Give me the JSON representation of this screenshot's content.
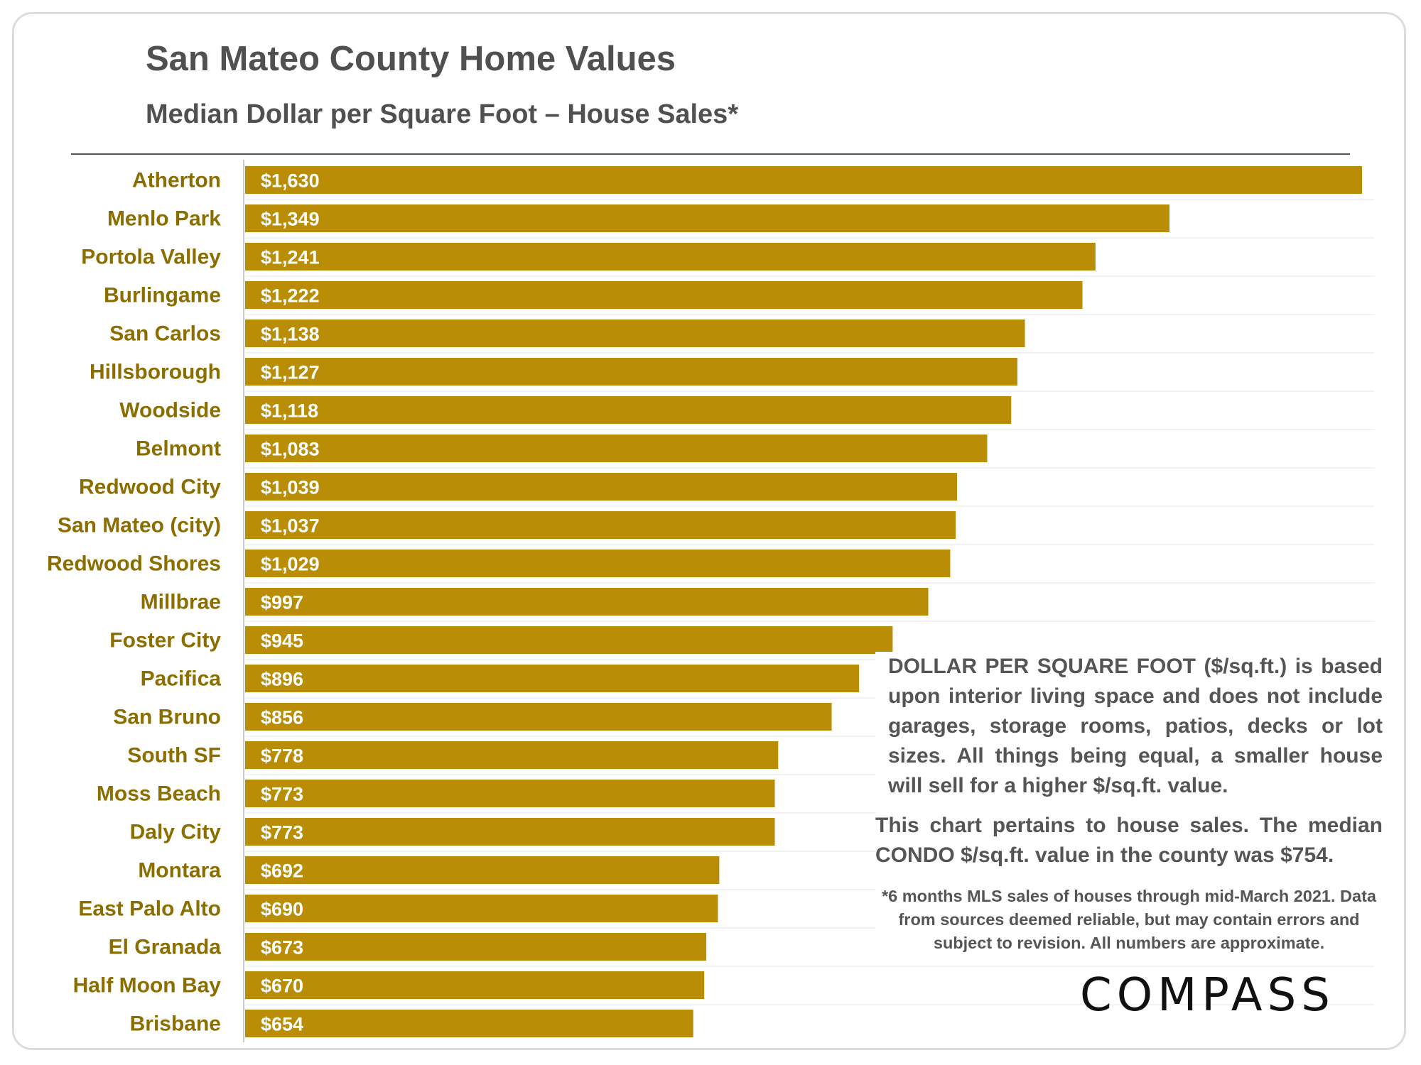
{
  "header": {
    "title": "San Mateo County Home Values",
    "subtitle": "Median Dollar per Square Foot – House Sales*"
  },
  "notes": {
    "definition": "DOLLAR PER SQUARE FOOT ($/sq.ft.) is based upon interior living space and does not include garages, storage rooms, patios, decks or lot sizes. All things being equal, a smaller house will sell for a higher $/sq.ft. value.",
    "condo": "This chart pertains to house sales. The median CONDO $/sq.ft. value in the county was $754.",
    "footnote": "*6 months MLS sales of houses through mid-March 2021. Data from sources deemed reliable, but may contain errors and subject to revision. All numbers are approximate."
  },
  "brand": {
    "logo_text": "COMPASS"
  },
  "colors": {
    "bar": "#b98d05",
    "category_label": "#8b6d00",
    "text": "#505050"
  },
  "chart_data": {
    "type": "bar",
    "orientation": "horizontal",
    "title": "San Mateo County Home Values",
    "subtitle": "Median Dollar per Square Foot – House Sales*",
    "categories": [
      "Atherton",
      "Menlo Park",
      "Portola Valley",
      "Burlingame",
      "San Carlos",
      "Hillsborough",
      "Woodside",
      "Belmont",
      "Redwood City",
      "San Mateo (city)",
      "Redwood Shores",
      "Millbrae",
      "Foster City",
      "Pacifica",
      "San Bruno",
      "South SF",
      "Moss Beach",
      "Daly City",
      "Montara",
      "East Palo Alto",
      "El Granada",
      "Half Moon Bay",
      "Brisbane"
    ],
    "values": [
      1630,
      1349,
      1241,
      1222,
      1138,
      1127,
      1118,
      1083,
      1039,
      1037,
      1029,
      997,
      945,
      896,
      856,
      778,
      773,
      773,
      692,
      690,
      673,
      670,
      654
    ],
    "data_labels": [
      "$1,630",
      "$1,349",
      "$1,241",
      "$1,222",
      "$1,138",
      "$1,127",
      "$1,118",
      "$1,083",
      "$1,039",
      "$1,037",
      "$1,029",
      "$997",
      "$945",
      "$896",
      "$856",
      "$778",
      "$773",
      "$773",
      "$692",
      "$690",
      "$673",
      "$670",
      "$654"
    ],
    "xlim": [
      0,
      1630
    ],
    "grid": true,
    "legend": "none"
  }
}
